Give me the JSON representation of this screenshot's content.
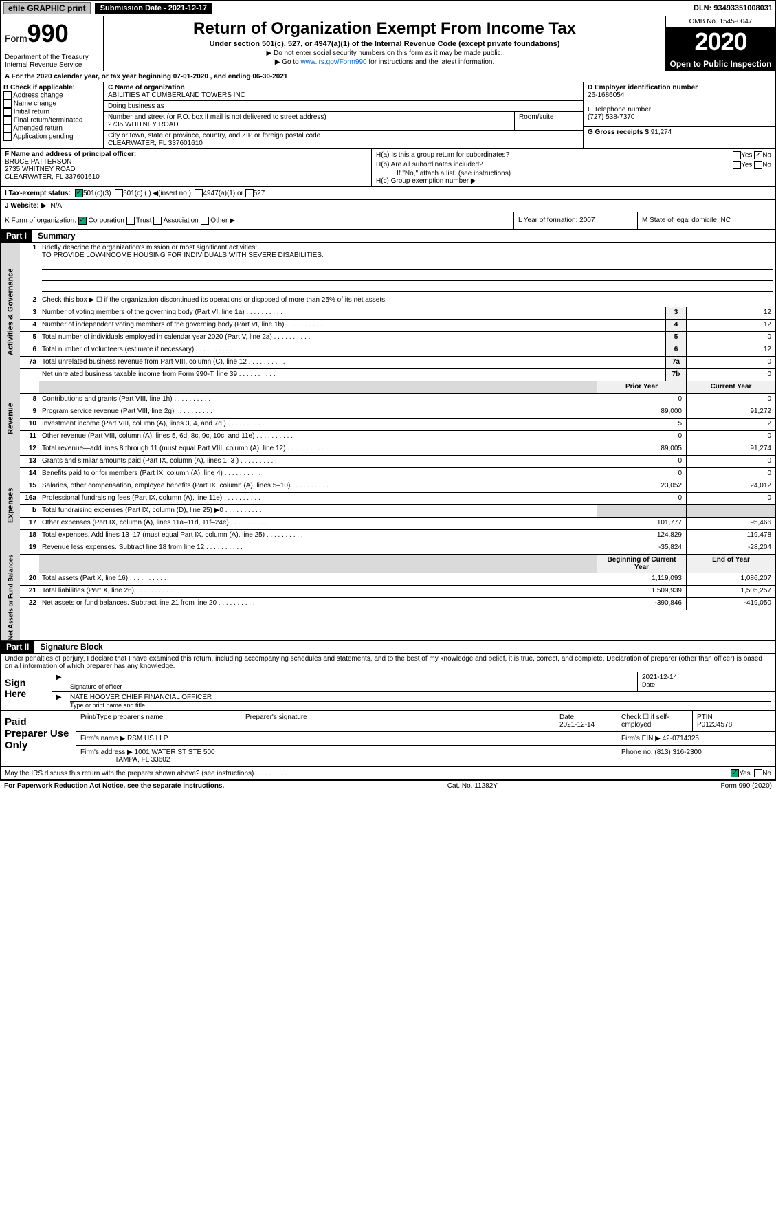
{
  "topbar": {
    "efile_label": "efile GRAPHIC print",
    "submission_label": "Submission Date - 2021-12-17",
    "dln": "DLN: 93493351008031"
  },
  "header": {
    "form_label": "Form",
    "form_number": "990",
    "dept": "Department of the Treasury\nInternal Revenue Service",
    "title": "Return of Organization Exempt From Income Tax",
    "subtitle": "Under section 501(c), 527, or 4947(a)(1) of the Internal Revenue Code (except private foundations)",
    "inst1": "▶ Do not enter social security numbers on this form as it may be made public.",
    "inst2_pre": "▶ Go to ",
    "inst2_link": "www.irs.gov/Form990",
    "inst2_post": " for instructions and the latest information.",
    "omb": "OMB No. 1545-0047",
    "year": "2020",
    "open": "Open to Public Inspection"
  },
  "section_a": "A For the 2020 calendar year, or tax year beginning 07-01-2020    , and ending 06-30-2021",
  "box_b": {
    "header": "B Check if applicable:",
    "opts": [
      "Address change",
      "Name change",
      "Initial return",
      "Final return/terminated",
      "Amended return",
      "Application pending"
    ]
  },
  "box_c": {
    "name_lbl": "C Name of organization",
    "name": "ABILITIES AT CUMBERLAND TOWERS INC",
    "dba_lbl": "Doing business as",
    "dba": "",
    "addr_lbl": "Number and street (or P.O. box if mail is not delivered to street address)",
    "addr": "2735 WHITNEY ROAD",
    "room_lbl": "Room/suite",
    "city_lbl": "City or town, state or province, country, and ZIP or foreign postal code",
    "city": "CLEARWATER, FL  337601610"
  },
  "box_d": {
    "lbl": "D Employer identification number",
    "val": "26-1686054"
  },
  "box_e": {
    "lbl": "E Telephone number",
    "val": "(727) 538-7370"
  },
  "box_g": {
    "lbl": "G Gross receipts $",
    "val": "91,274"
  },
  "box_f": {
    "lbl": "F  Name and address of principal officer:",
    "name": "BRUCE PATTERSON",
    "addr1": "2735 WHITNEY ROAD",
    "addr2": "CLEARWATER, FL  337601610"
  },
  "box_h": {
    "a_lbl": "H(a)  Is this a group return for subordinates?",
    "a_yes": "Yes",
    "a_no": "No",
    "b_lbl": "H(b)  Are all subordinates included?",
    "b_yes": "Yes",
    "b_no": "No",
    "b_note": "If \"No,\" attach a list. (see instructions)",
    "c_lbl": "H(c)  Group exemption number ▶"
  },
  "row_i": {
    "lbl": "I   Tax-exempt status:",
    "opt1": "501(c)(3)",
    "opt2": "501(c) (  ) ◀(insert no.)",
    "opt3": "4947(a)(1) or",
    "opt4": "527"
  },
  "row_j": {
    "lbl": "J   Website: ▶",
    "val": "N/A"
  },
  "row_k": {
    "lbl": "K Form of organization:",
    "opts": [
      "Corporation",
      "Trust",
      "Association",
      "Other ▶"
    ]
  },
  "row_l": {
    "lbl": "L Year of formation:",
    "val": "2007"
  },
  "row_m": {
    "lbl": "M State of legal domicile:",
    "val": "NC"
  },
  "part1": {
    "hdr": "Part I",
    "title": "Summary",
    "q1_lbl": "1",
    "q1": "Briefly describe the organization's mission or most significant activities:",
    "q1_val": "TO PROVIDE LOW-INCOME HOUSING FOR INDIVIDUALS WITH SEVERE DISABILITIES.",
    "q2_lbl": "2",
    "q2": "Check this box ▶ ☐  if the organization discontinued its operations or disposed of more than 25% of its net assets.",
    "rows": [
      {
        "n": "3",
        "d": "Number of voting members of the governing body (Part VI, line 1a)",
        "b": "3",
        "v": "12"
      },
      {
        "n": "4",
        "d": "Number of independent voting members of the governing body (Part VI, line 1b)",
        "b": "4",
        "v": "12"
      },
      {
        "n": "5",
        "d": "Total number of individuals employed in calendar year 2020 (Part V, line 2a)",
        "b": "5",
        "v": "0"
      },
      {
        "n": "6",
        "d": "Total number of volunteers (estimate if necessary)",
        "b": "6",
        "v": "12"
      },
      {
        "n": "7a",
        "d": "Total unrelated business revenue from Part VIII, column (C), line 12",
        "b": "7a",
        "v": "0"
      },
      {
        "n": "",
        "d": "Net unrelated business taxable income from Form 990-T, line 39",
        "b": "7b",
        "v": "0"
      }
    ]
  },
  "revenue": {
    "side": "Revenue",
    "hdr_prior": "Prior Year",
    "hdr_curr": "Current Year",
    "rows": [
      {
        "n": "8",
        "d": "Contributions and grants (Part VIII, line 1h)",
        "p": "0",
        "c": "0"
      },
      {
        "n": "9",
        "d": "Program service revenue (Part VIII, line 2g)",
        "p": "89,000",
        "c": "91,272"
      },
      {
        "n": "10",
        "d": "Investment income (Part VIII, column (A), lines 3, 4, and 7d )",
        "p": "5",
        "c": "2"
      },
      {
        "n": "11",
        "d": "Other revenue (Part VIII, column (A), lines 5, 6d, 8c, 9c, 10c, and 11e)",
        "p": "0",
        "c": "0"
      },
      {
        "n": "12",
        "d": "Total revenue—add lines 8 through 11 (must equal Part VIII, column (A), line 12)",
        "p": "89,005",
        "c": "91,274"
      }
    ]
  },
  "expenses": {
    "side": "Expenses",
    "rows": [
      {
        "n": "13",
        "d": "Grants and similar amounts paid (Part IX, column (A), lines 1–3 )",
        "p": "0",
        "c": "0"
      },
      {
        "n": "14",
        "d": "Benefits paid to or for members (Part IX, column (A), line 4)",
        "p": "0",
        "c": "0"
      },
      {
        "n": "15",
        "d": "Salaries, other compensation, employee benefits (Part IX, column (A), lines 5–10)",
        "p": "23,052",
        "c": "24,012"
      },
      {
        "n": "16a",
        "d": "Professional fundraising fees (Part IX, column (A), line 11e)",
        "p": "0",
        "c": "0"
      },
      {
        "n": "b",
        "d": "Total fundraising expenses (Part IX, column (D), line 25) ▶0",
        "p": "",
        "c": "",
        "gray": true
      },
      {
        "n": "17",
        "d": "Other expenses (Part IX, column (A), lines 11a–11d, 11f–24e)",
        "p": "101,777",
        "c": "95,466"
      },
      {
        "n": "18",
        "d": "Total expenses. Add lines 13–17 (must equal Part IX, column (A), line 25)",
        "p": "124,829",
        "c": "119,478"
      },
      {
        "n": "19",
        "d": "Revenue less expenses. Subtract line 18 from line 12",
        "p": "-35,824",
        "c": "-28,204"
      }
    ]
  },
  "netassets": {
    "side": "Net Assets or Fund Balances",
    "hdr_begin": "Beginning of Current Year",
    "hdr_end": "End of Year",
    "rows": [
      {
        "n": "20",
        "d": "Total assets (Part X, line 16)",
        "p": "1,119,093",
        "c": "1,086,207"
      },
      {
        "n": "21",
        "d": "Total liabilities (Part X, line 26)",
        "p": "1,509,939",
        "c": "1,505,257"
      },
      {
        "n": "22",
        "d": "Net assets or fund balances. Subtract line 21 from line 20",
        "p": "-390,846",
        "c": "-419,050"
      }
    ]
  },
  "gov_side": "Activities & Governance",
  "part2": {
    "hdr": "Part II",
    "title": "Signature Block",
    "declare": "Under penalties of perjury, I declare that I have examined this return, including accompanying schedules and statements, and to the best of my knowledge and belief, it is true, correct, and complete. Declaration of preparer (other than officer) is based on all information of which preparer has any knowledge.",
    "sign_here": "Sign Here",
    "sig_lbl": "Signature of officer",
    "date": "2021-12-14",
    "date_lbl": "Date",
    "name": "NATE HOOVER  CHIEF FINANCIAL OFFICER",
    "name_lbl": "Type or print name and title",
    "paid": "Paid Preparer Use Only",
    "prep_name_lbl": "Print/Type preparer's name",
    "prep_sig_lbl": "Preparer's signature",
    "prep_date_lbl": "Date",
    "prep_date": "2021-12-14",
    "check_lbl": "Check ☐ if self-employed",
    "ptin_lbl": "PTIN",
    "ptin": "P01234578",
    "firm_name_lbl": "Firm's name   ▶",
    "firm_name": "RSM US LLP",
    "firm_ein_lbl": "Firm's EIN ▶",
    "firm_ein": "42-0714325",
    "firm_addr_lbl": "Firm's address ▶",
    "firm_addr": "1001 WATER ST STE 500",
    "firm_city": "TAMPA, FL  33602",
    "phone_lbl": "Phone no.",
    "phone": "(813) 316-2300",
    "discuss": "May the IRS discuss this return with the preparer shown above? (see instructions)",
    "yes": "Yes",
    "no": "No"
  },
  "footer": {
    "left": "For Paperwork Reduction Act Notice, see the separate instructions.",
    "mid": "Cat. No. 11282Y",
    "right": "Form 990 (2020)"
  }
}
